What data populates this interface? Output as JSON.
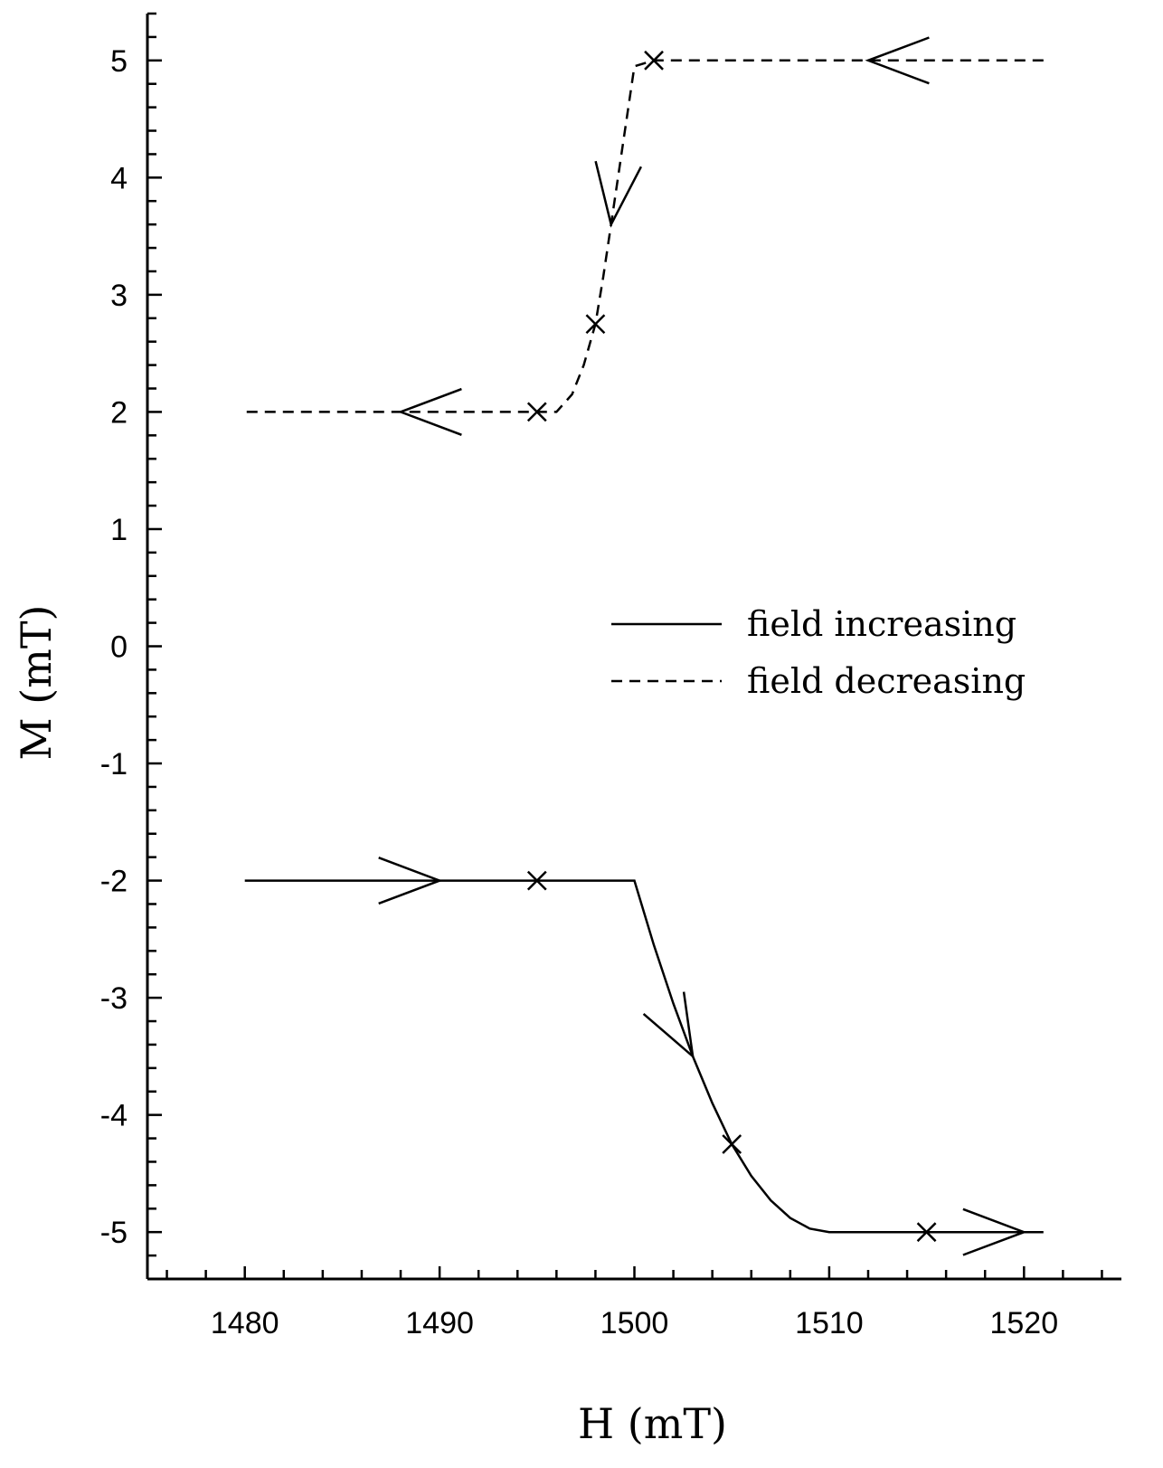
{
  "chart_data": {
    "type": "line",
    "title": "",
    "xlabel": "H (mT)",
    "ylabel": "M (mT)",
    "xlim": [
      1475,
      1525
    ],
    "ylim": [
      -5.4,
      5.4
    ],
    "x_ticks": [
      1480,
      1490,
      1500,
      1510,
      1520
    ],
    "y_ticks": [
      -5,
      -4,
      -3,
      -2,
      -1,
      0,
      1,
      2,
      3,
      4,
      5
    ],
    "x_minor_step": 2,
    "y_minor_step": 0.2,
    "grid": false,
    "legend_position": "center-right",
    "series": [
      {
        "name": "field increasing",
        "style": "solid",
        "color": "#000000",
        "points": [
          [
            1480,
            -2
          ],
          [
            1490,
            -2
          ],
          [
            1495,
            -2
          ],
          [
            1500,
            -2
          ],
          [
            1501,
            -2.55
          ],
          [
            1502,
            -3.05
          ],
          [
            1503,
            -3.5
          ],
          [
            1504,
            -3.9
          ],
          [
            1505,
            -4.25
          ],
          [
            1506,
            -4.52
          ],
          [
            1507,
            -4.73
          ],
          [
            1508,
            -4.88
          ],
          [
            1509,
            -4.97
          ],
          [
            1510,
            -5
          ],
          [
            1515,
            -5
          ],
          [
            1521,
            -5
          ]
        ],
        "markers": [
          [
            1495,
            -2
          ],
          [
            1505,
            -4.25
          ],
          [
            1515,
            -5
          ]
        ],
        "arrows": [
          {
            "at": [
              1490,
              -2
            ],
            "dir": [
              1,
              0
            ]
          },
          {
            "at": [
              1503,
              -3.5
            ],
            "dir": [
              0.48,
              -0.88
            ]
          },
          {
            "at": [
              1520,
              -5
            ],
            "dir": [
              1,
              0
            ]
          }
        ]
      },
      {
        "name": "field decreasing",
        "style": "dashed",
        "color": "#000000",
        "points": [
          [
            1521,
            5
          ],
          [
            1512,
            5
          ],
          [
            1501,
            5
          ],
          [
            1500,
            4.95
          ],
          [
            1499.6,
            4.5
          ],
          [
            1499.2,
            4.05
          ],
          [
            1498.8,
            3.6
          ],
          [
            1498.4,
            3.15
          ],
          [
            1498,
            2.75
          ],
          [
            1497.4,
            2.4
          ],
          [
            1496.8,
            2.15
          ],
          [
            1496,
            2.0
          ],
          [
            1495,
            2
          ],
          [
            1488,
            2
          ],
          [
            1480,
            2
          ]
        ],
        "markers": [
          [
            1501,
            5
          ],
          [
            1498,
            2.75
          ],
          [
            1495,
            2
          ]
        ],
        "arrows": [
          {
            "at": [
              1512,
              5
            ],
            "dir": [
              -1,
              0
            ]
          },
          {
            "at": [
              1498.8,
              3.6
            ],
            "dir": [
              -0.12,
              -0.99
            ]
          },
          {
            "at": [
              1488,
              2
            ],
            "dir": [
              -1,
              0
            ]
          }
        ]
      }
    ]
  }
}
